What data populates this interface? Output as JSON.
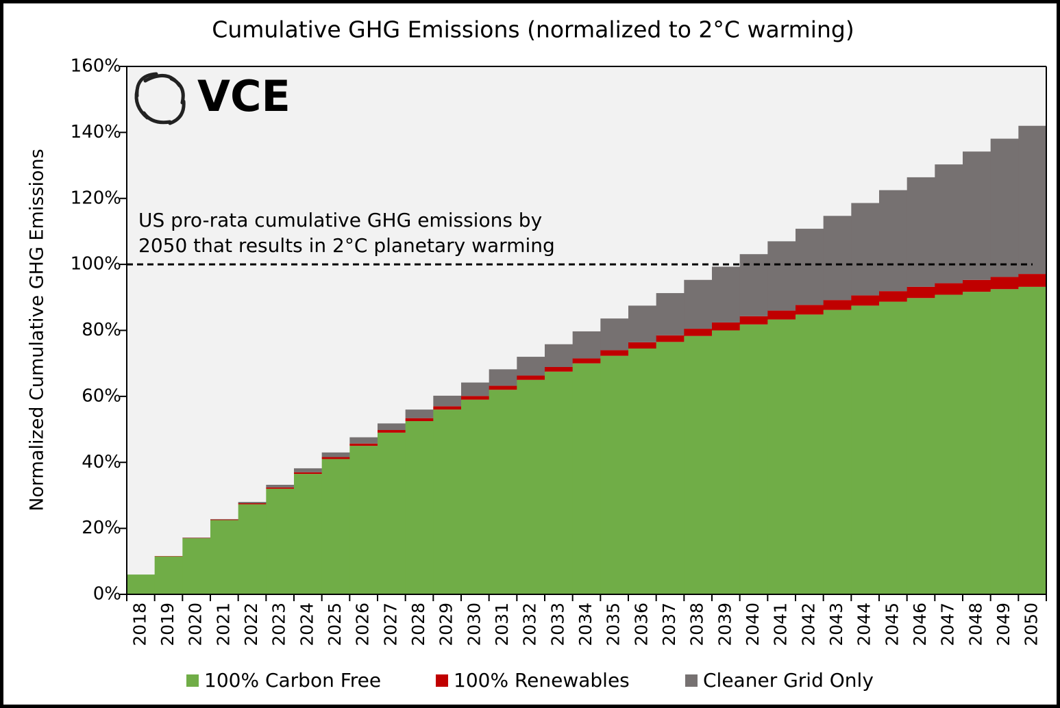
{
  "chart_data": {
    "type": "stacked_bar",
    "title": "Cumulative GHG Emissions (normalized to 2°C warming)",
    "y_axis_label": "Normalized Cumulative GHG Emissions",
    "logo_text": "VCE",
    "annotation": [
      "US pro-rata cumulative GHG emissions by",
      "2050 that results in 2°C planetary warming"
    ],
    "reference_line": 100,
    "categories": [
      "2018",
      "2019",
      "2020",
      "2021",
      "2022",
      "2023",
      "2024",
      "2025",
      "2026",
      "2027",
      "2028",
      "2029",
      "2030",
      "2031",
      "2032",
      "2033",
      "2034",
      "2035",
      "2036",
      "2037",
      "2038",
      "2039",
      "2040",
      "2041",
      "2042",
      "2043",
      "2044",
      "2045",
      "2046",
      "2047",
      "2048",
      "2049",
      "2050"
    ],
    "series": [
      {
        "name": "100% Carbon Free",
        "color": "#70ad47",
        "values": [
          6,
          11.5,
          17,
          22.5,
          27.3,
          32,
          36.5,
          41,
          45,
          49,
          52.5,
          56,
          59,
          62,
          65,
          67.5,
          70,
          72.3,
          74.5,
          76.5,
          78.3,
          80,
          81.8,
          83.3,
          84.8,
          86.2,
          87.5,
          88.7,
          89.8,
          90.8,
          91.7,
          92.5,
          93.2
        ]
      },
      {
        "name": "100% Renewables",
        "color": "#c00000",
        "values": [
          0,
          0.1,
          0.1,
          0.2,
          0.3,
          0.4,
          0.5,
          0.6,
          0.7,
          0.8,
          0.9,
          1,
          1.1,
          1.2,
          1.3,
          1.4,
          1.5,
          1.7,
          1.9,
          2,
          2.2,
          2.4,
          2.5,
          2.7,
          2.9,
          3,
          3.1,
          3.2,
          3.4,
          3.5,
          3.6,
          3.7,
          3.9
        ]
      },
      {
        "name": "Cleaner Grid Only",
        "color": "#767171",
        "values": [
          0,
          0,
          0.1,
          0.1,
          0.4,
          0.8,
          1.2,
          1.4,
          1.9,
          2,
          2.6,
          3.2,
          4.1,
          5,
          5.7,
          6.9,
          8.2,
          9.6,
          11.1,
          12.8,
          14.8,
          16.9,
          18.8,
          21,
          23.1,
          25.5,
          28,
          30.6,
          33.2,
          36,
          38.9,
          41.9,
          44.9
        ]
      }
    ],
    "ylim": [
      0,
      160
    ],
    "yticks": [
      {
        "value": 0,
        "label": "0%"
      },
      {
        "value": 20,
        "label": "20%"
      },
      {
        "value": 40,
        "label": "40%"
      },
      {
        "value": 60,
        "label": "60%"
      },
      {
        "value": 80,
        "label": "80%"
      },
      {
        "value": 100,
        "label": "100%"
      },
      {
        "value": 120,
        "label": "120%"
      },
      {
        "value": 140,
        "label": "140%"
      },
      {
        "value": 160,
        "label": "160%"
      }
    ],
    "legend": "bottom"
  }
}
